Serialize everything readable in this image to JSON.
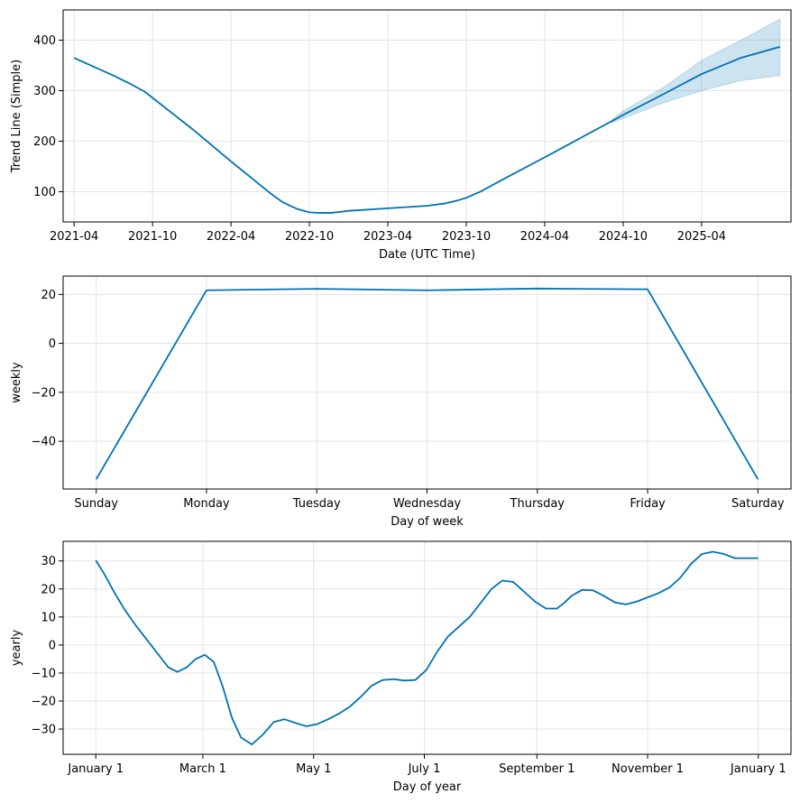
{
  "chart_data": [
    {
      "type": "line",
      "id": "trend",
      "xlabel": "Date (UTC Time)",
      "ylabel": "Trend Line (Simple)",
      "x_unit": "years",
      "xlim": [
        2021.18,
        2025.82
      ],
      "ylim": [
        40,
        460
      ],
      "x_ticks": [
        {
          "value": 2021.25,
          "label": "2021-04"
        },
        {
          "value": 2021.75,
          "label": "2021-10"
        },
        {
          "value": 2022.25,
          "label": "2022-04"
        },
        {
          "value": 2022.75,
          "label": "2022-10"
        },
        {
          "value": 2023.25,
          "label": "2023-04"
        },
        {
          "value": 2023.75,
          "label": "2023-10"
        },
        {
          "value": 2024.25,
          "label": "2024-04"
        },
        {
          "value": 2024.75,
          "label": "2024-10"
        },
        {
          "value": 2025.25,
          "label": "2025-04"
        }
      ],
      "y_ticks": [
        {
          "value": 100,
          "label": "100"
        },
        {
          "value": 200,
          "label": "200"
        },
        {
          "value": 300,
          "label": "300"
        },
        {
          "value": 400,
          "label": "400"
        }
      ],
      "series": [
        {
          "name": "trend",
          "x": [
            2021.25,
            2021.5,
            2021.6,
            2021.7,
            2022.0,
            2022.25,
            2022.5,
            2022.58,
            2022.67,
            2022.75,
            2022.81,
            2022.89,
            2023.0,
            2023.25,
            2023.5,
            2023.62,
            2023.7,
            2023.75,
            2023.84,
            2024.0,
            2024.25,
            2024.5,
            2024.68,
            2024.75,
            2025.0,
            2025.25,
            2025.5,
            2025.75
          ],
          "y": [
            365,
            330,
            315,
            298,
            225,
            160,
            97,
            79,
            66,
            59,
            58,
            58,
            62,
            67,
            72,
            77,
            83,
            88,
            100,
            127,
            168,
            210,
            240,
            252,
            292,
            333,
            365,
            387
          ]
        }
      ],
      "uncertainty": {
        "x": [
          2024.68,
          2024.75,
          2025.0,
          2025.25,
          2025.5,
          2025.75
        ],
        "lower": [
          237,
          245,
          275,
          300,
          320,
          330
        ],
        "upper": [
          243,
          260,
          305,
          360,
          400,
          442
        ]
      }
    },
    {
      "type": "line",
      "id": "weekly",
      "xlabel": "Day of week",
      "ylabel": "weekly",
      "x_unit": "day index",
      "xlim": [
        -0.3,
        6.3
      ],
      "ylim": [
        -59.5,
        27.5
      ],
      "x_ticks": [
        {
          "value": 0,
          "label": "Sunday"
        },
        {
          "value": 1,
          "label": "Monday"
        },
        {
          "value": 2,
          "label": "Tuesday"
        },
        {
          "value": 3,
          "label": "Wednesday"
        },
        {
          "value": 4,
          "label": "Thursday"
        },
        {
          "value": 5,
          "label": "Friday"
        },
        {
          "value": 6,
          "label": "Saturday"
        }
      ],
      "y_ticks": [
        {
          "value": -40,
          "label": "−40"
        },
        {
          "value": -20,
          "label": "−20"
        },
        {
          "value": 0,
          "label": "0"
        },
        {
          "value": 20,
          "label": "20"
        }
      ],
      "series": [
        {
          "name": "weekly",
          "x": [
            0,
            1,
            2,
            3,
            4,
            5,
            6
          ],
          "y": [
            -55.5,
            21.7,
            22.3,
            21.7,
            22.4,
            22.1,
            -55.5
          ]
        }
      ]
    },
    {
      "type": "line",
      "id": "yearly",
      "xlabel": "Day of year",
      "ylabel": "yearly",
      "x_unit": "day of year",
      "xlim": [
        -18,
        383
      ],
      "ylim": [
        -39,
        37
      ],
      "x_ticks": [
        {
          "value": 0,
          "label": "January 1"
        },
        {
          "value": 59,
          "label": "March 1"
        },
        {
          "value": 120,
          "label": "May 1"
        },
        {
          "value": 181,
          "label": "July 1"
        },
        {
          "value": 243,
          "label": "September 1"
        },
        {
          "value": 304,
          "label": "November 1"
        },
        {
          "value": 365,
          "label": "January 1"
        }
      ],
      "y_ticks": [
        {
          "value": -30,
          "label": "−30"
        },
        {
          "value": -20,
          "label": "−20"
        },
        {
          "value": -10,
          "label": "−10"
        },
        {
          "value": 0,
          "label": "0"
        },
        {
          "value": 10,
          "label": "10"
        },
        {
          "value": 20,
          "label": "20"
        },
        {
          "value": 30,
          "label": "30"
        }
      ],
      "series": [
        {
          "name": "yearly",
          "x": [
            0,
            5,
            10,
            16,
            22,
            28,
            34,
            40,
            45,
            50,
            55,
            60,
            65,
            70,
            75,
            80,
            86,
            92,
            98,
            104,
            110,
            116,
            122,
            128,
            134,
            140,
            146,
            152,
            158,
            164,
            170,
            176,
            182,
            188,
            194,
            200,
            206,
            212,
            218,
            224,
            230,
            236,
            242,
            248,
            254,
            258,
            262,
            268,
            274,
            280,
            286,
            292,
            298,
            304,
            310,
            316,
            322,
            328,
            334,
            340,
            346,
            352,
            356,
            360,
            365
          ],
          "y": [
            30.2,
            25,
            19,
            12.5,
            7,
            2,
            -3,
            -8,
            -9.6,
            -8,
            -5,
            -3.5,
            -6,
            -15,
            -26,
            -33,
            -35.5,
            -32,
            -27.5,
            -26.5,
            -27.8,
            -29,
            -28.2,
            -26.5,
            -24.5,
            -22,
            -18.5,
            -14.5,
            -12.5,
            -12.2,
            -12.7,
            -12.5,
            -9,
            -2.5,
            3,
            6.5,
            10,
            15,
            20,
            23,
            22.5,
            19,
            15.5,
            13,
            13,
            15,
            17.5,
            19.7,
            19.5,
            17.5,
            15.2,
            14.5,
            15.5,
            17,
            18.5,
            20.5,
            24,
            29,
            32.5,
            33.3,
            32.5,
            31,
            31,
            31,
            31
          ]
        }
      ]
    }
  ]
}
